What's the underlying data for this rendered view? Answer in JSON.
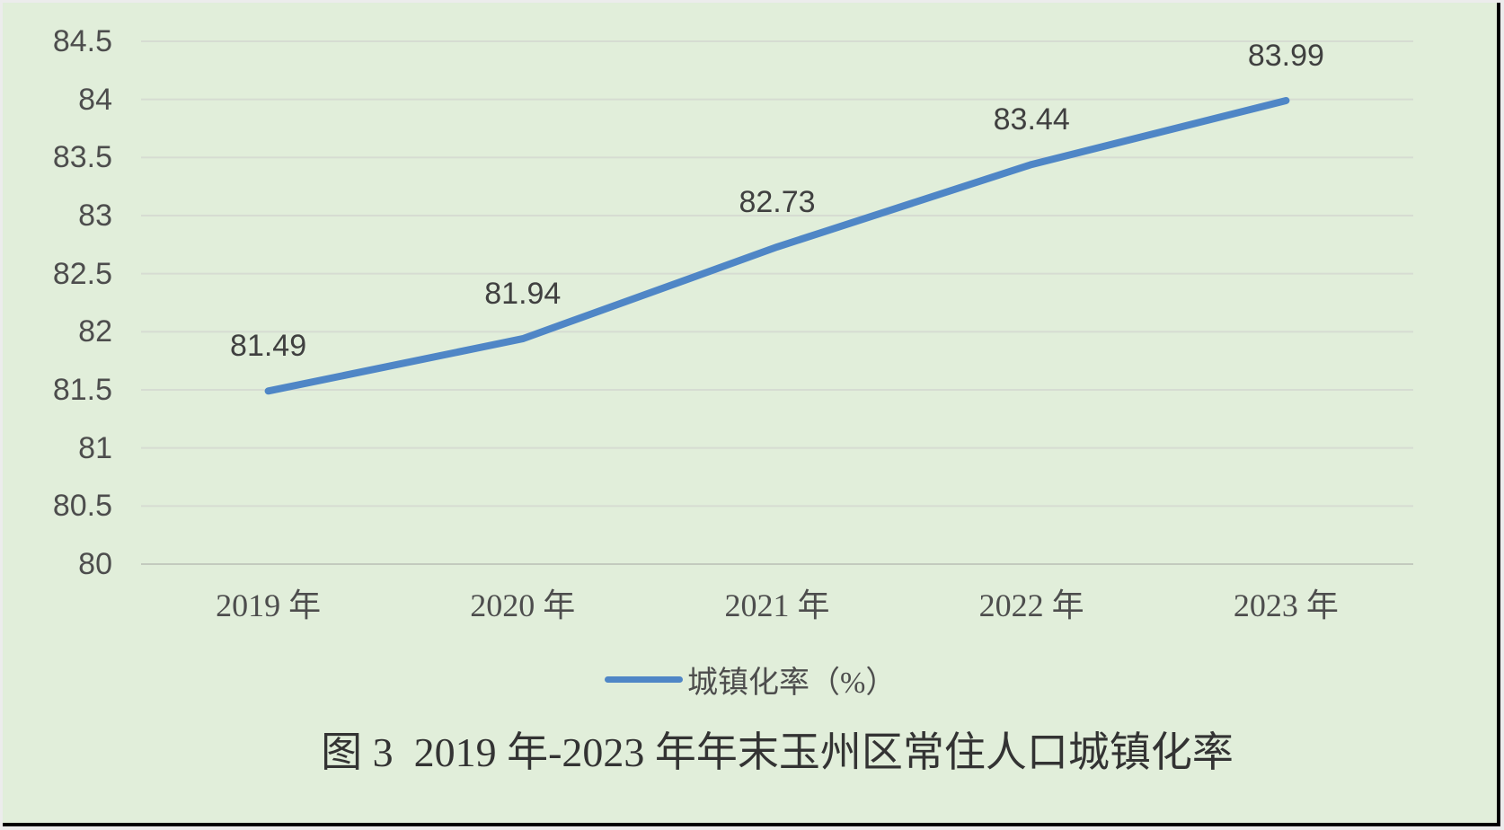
{
  "frame": {
    "background_color": "#e1eeda",
    "border_dark_color": "#000000",
    "border_light_color": "#ececec"
  },
  "chart_data": {
    "type": "line",
    "title": "图 3  2019 年-2023 年年末玉州区常住人口城镇化率",
    "legend": "城镇化率（%）",
    "legend_position": "bottom",
    "categories": [
      "2019 年",
      "2020 年",
      "2021 年",
      "2022 年",
      "2023 年"
    ],
    "series": [
      {
        "name": "城镇化率（%）",
        "values": [
          81.49,
          81.94,
          82.73,
          83.44,
          83.99
        ]
      }
    ],
    "data_labels": [
      "81.49",
      "81.94",
      "82.73",
      "83.44",
      "83.99"
    ],
    "ylim": [
      80,
      84.5
    ],
    "y_ticks": [
      84.5,
      84,
      83.5,
      83,
      82.5,
      82,
      81.5,
      81,
      80.5,
      80
    ],
    "grid": "horizontal-only",
    "colors": {
      "line": "#4f86c6",
      "gridline": "#d6dcd2",
      "axis_line": "#c3cabe",
      "tick_text": "#4d4d4d",
      "data_label_text": "#404040",
      "title_text": "#333333"
    }
  }
}
